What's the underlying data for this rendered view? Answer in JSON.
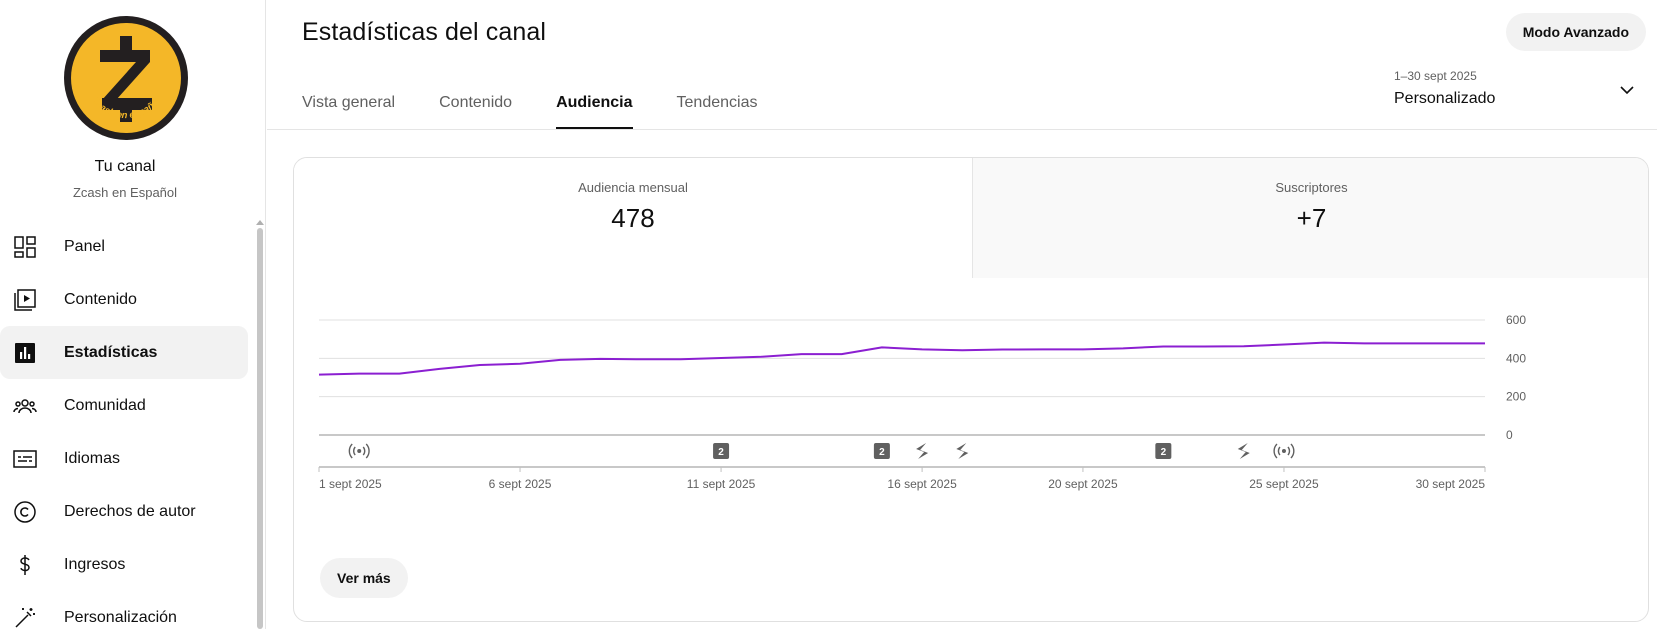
{
  "channel": {
    "logo_text": "Zcash en español",
    "title": "Tu canal",
    "name": "Zcash en Español"
  },
  "nav": [
    {
      "label": "Panel",
      "icon": "dashboard-icon",
      "active": false
    },
    {
      "label": "Contenido",
      "icon": "content-icon",
      "active": false
    },
    {
      "label": "Estadísticas",
      "icon": "analytics-icon",
      "active": true
    },
    {
      "label": "Comunidad",
      "icon": "community-icon",
      "active": false
    },
    {
      "label": "Idiomas",
      "icon": "subtitles-icon",
      "active": false
    },
    {
      "label": "Derechos de autor",
      "icon": "copyright-icon",
      "active": false
    },
    {
      "label": "Ingresos",
      "icon": "dollar-icon",
      "active": false
    },
    {
      "label": "Personalización",
      "icon": "magic-wand-icon",
      "active": false
    }
  ],
  "header": {
    "title": "Estadísticas del canal",
    "advanced_button": "Modo Avanzado"
  },
  "tabs": [
    {
      "label": "Vista general",
      "active": false
    },
    {
      "label": "Contenido",
      "active": false
    },
    {
      "label": "Audiencia",
      "active": true
    },
    {
      "label": "Tendencias",
      "active": false
    }
  ],
  "date_range": {
    "dates": "1–30 sept 2025",
    "label": "Personalizado"
  },
  "metrics": [
    {
      "label": "Audiencia mensual",
      "value": "478",
      "selected": true
    },
    {
      "label": "Suscriptores",
      "value": "+7",
      "selected": false
    }
  ],
  "chart_data": {
    "type": "line",
    "x": [
      1,
      2,
      3,
      4,
      5,
      6,
      7,
      8,
      9,
      10,
      11,
      12,
      13,
      14,
      15,
      16,
      17,
      18,
      19,
      20,
      21,
      22,
      23,
      24,
      25,
      26,
      27,
      28,
      29,
      30
    ],
    "series": [
      {
        "values": [
          315,
          320,
          320,
          345,
          365,
          372,
          392,
          397,
          395,
          395,
          402,
          408,
          422,
          422,
          457,
          447,
          442,
          446,
          447,
          447,
          452,
          462,
          462,
          463,
          472,
          482,
          478,
          478,
          478,
          478
        ]
      }
    ],
    "ylim": [
      0,
      600
    ],
    "yticks": [
      0,
      200,
      400,
      600
    ],
    "xticks": [
      {
        "day": 1,
        "label": "1 sept 2025"
      },
      {
        "day": 6,
        "label": "6 sept 2025"
      },
      {
        "day": 11,
        "label": "11 sept 2025"
      },
      {
        "day": 16,
        "label": "16 sept 2025"
      },
      {
        "day": 20,
        "label": "20 sept 2025"
      },
      {
        "day": 25,
        "label": "25 sept 2025"
      },
      {
        "day": 30,
        "label": "30 sept 2025"
      }
    ],
    "line_color": "#8b1fd1",
    "grid": true,
    "events": [
      {
        "day": 2,
        "type": "live",
        "label": ""
      },
      {
        "day": 11,
        "type": "count",
        "label": "2"
      },
      {
        "day": 15,
        "type": "count",
        "label": "2"
      },
      {
        "day": 16,
        "type": "short",
        "label": ""
      },
      {
        "day": 17,
        "type": "short",
        "label": ""
      },
      {
        "day": 22,
        "type": "count",
        "label": "2"
      },
      {
        "day": 24,
        "type": "short",
        "label": ""
      },
      {
        "day": 25,
        "type": "live",
        "label": ""
      }
    ]
  },
  "more_button": "Ver más"
}
